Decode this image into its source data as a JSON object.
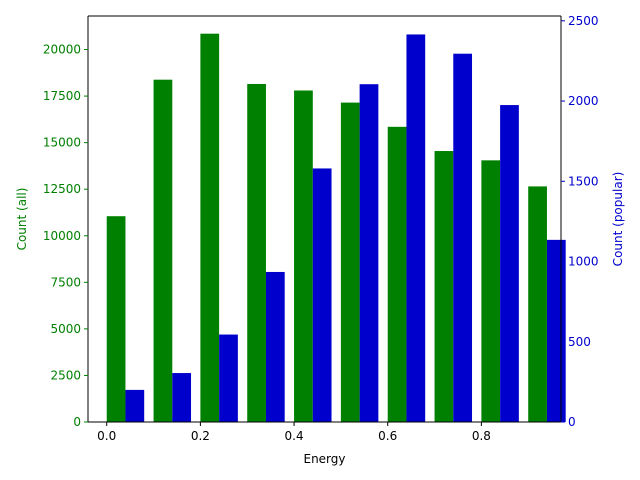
{
  "chart_data": {
    "type": "bar",
    "xlabel": "Energy",
    "x_ticks": [
      0.0,
      0.2,
      0.4,
      0.6,
      0.8
    ],
    "x_tick_labels": [
      "0.0",
      "0.2",
      "0.4",
      "0.6",
      "0.8"
    ],
    "xlim": [
      -0.04,
      0.97
    ],
    "bin_starts": [
      0.0,
      0.1,
      0.2,
      0.3,
      0.4,
      0.5,
      0.6,
      0.7,
      0.8,
      0.9
    ],
    "bin_width": 0.1,
    "grid": false,
    "series": [
      {
        "axis": "left",
        "color": "#008000",
        "values": [
          11050,
          18380,
          20850,
          18150,
          17800,
          17150,
          15850,
          14550,
          14050,
          12650
        ]
      },
      {
        "axis": "right",
        "color": "#0000cd",
        "values": [
          200,
          305,
          545,
          935,
          1580,
          2105,
          2415,
          2295,
          1975,
          1135
        ]
      }
    ],
    "left_axis": {
      "label": "Count (all)",
      "color": "#008000",
      "ylim": [
        0,
        21800
      ],
      "ticks": [
        0,
        2500,
        5000,
        7500,
        10000,
        12500,
        15000,
        17500,
        20000
      ],
      "tick_labels": [
        "0",
        "2500",
        "5000",
        "7500",
        "10000",
        "12500",
        "15000",
        "17500",
        "20000"
      ]
    },
    "right_axis": {
      "label": "Count (popular)",
      "color": "#0000cd",
      "ylim": [
        0,
        2530
      ],
      "ticks": [
        0,
        500,
        1000,
        1500,
        2000,
        2500
      ],
      "tick_labels": [
        "0",
        "500",
        "1000",
        "1500",
        "2000",
        "2500"
      ]
    }
  }
}
